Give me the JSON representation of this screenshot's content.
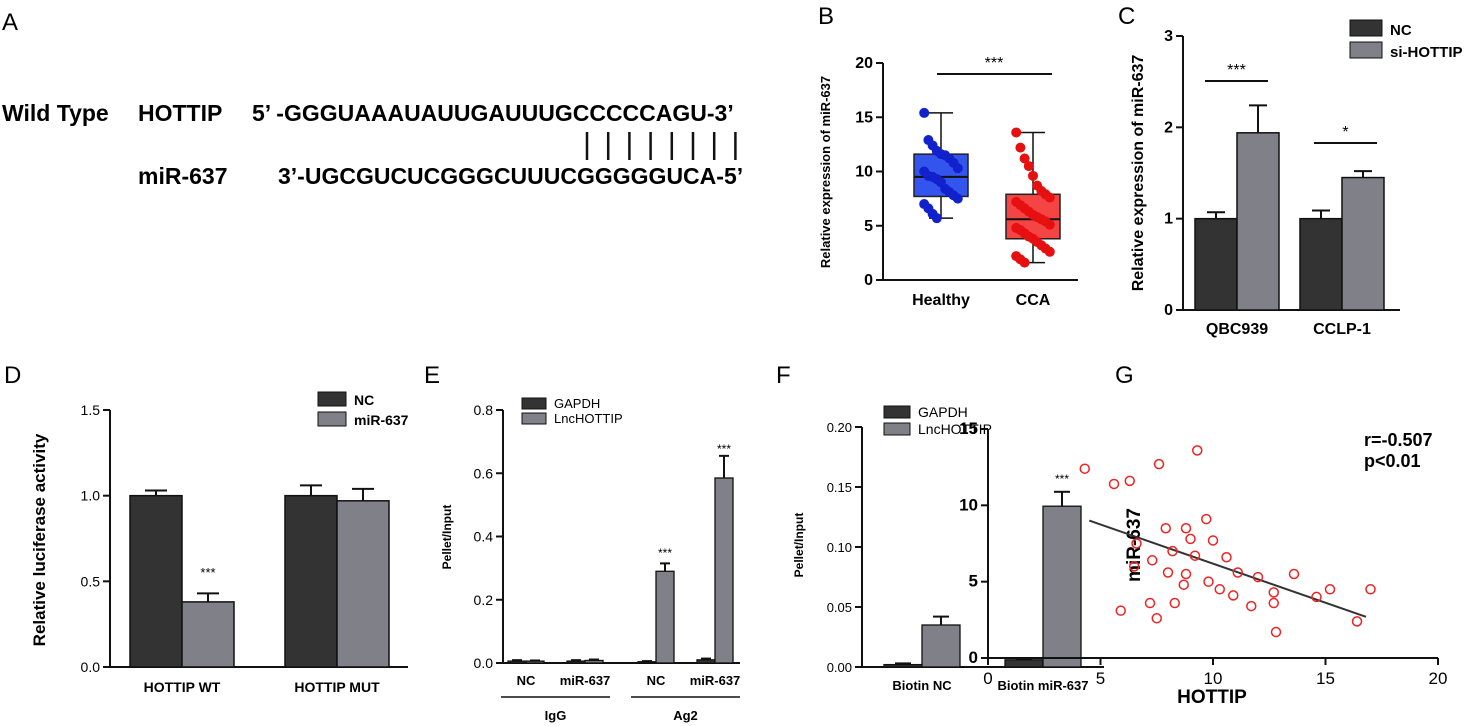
{
  "panels": {
    "A": {
      "letter": "A",
      "wild_type_label": "Wild Type",
      "gene1_label": "HOTTIP",
      "seq1": "5’ -GGGUAAAUAUUGAUUUGCCCCCAGU-3’",
      "gene2_label": "miR-637",
      "seq2": "3’-UGCGUCUCGGGCUUUCGGGGGUCA-5’",
      "pairing_count": 8
    },
    "B": {
      "letter": "B"
    },
    "C": {
      "letter": "C"
    },
    "D": {
      "letter": "D"
    },
    "E": {
      "letter": "E"
    },
    "F": {
      "letter": "F"
    },
    "G": {
      "letter": "G"
    }
  },
  "colors": {
    "dark_bar": "#333333",
    "grey_bar": "#808088",
    "healthy_box": "#3355ee",
    "healthy_point": "#1122cc",
    "cca_box": "#f44444",
    "cca_point": "#e61010",
    "scatter_point": "#ee2222",
    "fit_line": "#333333"
  },
  "chart_data": [
    {
      "panel": "B",
      "type": "box",
      "ylabel": "Relative expression of miR-637",
      "ylim": [
        0,
        20
      ],
      "yticks": [
        0,
        5,
        10,
        15,
        20
      ],
      "categories": [
        "Healthy",
        "CCA"
      ],
      "boxes": [
        {
          "category": "Healthy",
          "min": 5.7,
          "q1": 7.7,
          "median": 9.5,
          "q3": 11.6,
          "max": 15.4,
          "points": [
            15.4,
            12.9,
            12.4,
            11.9,
            11.6,
            11.5,
            11.2,
            10.8,
            10.3,
            10.0,
            9.6,
            9.5,
            9.3,
            9.0,
            8.4,
            8.1,
            7.8,
            7.5,
            7.0,
            6.6,
            6.1,
            5.7
          ]
        },
        {
          "category": "CCA",
          "min": 1.6,
          "q1": 3.8,
          "median": 5.6,
          "q3": 7.9,
          "max": 13.6,
          "points": [
            13.6,
            12.2,
            11.2,
            10.5,
            9.6,
            8.7,
            8.2,
            7.9,
            7.6,
            7.2,
            6.9,
            6.6,
            6.3,
            6.0,
            5.8,
            5.6,
            5.4,
            5.1,
            4.8,
            4.6,
            4.3,
            4.0,
            3.8,
            3.5,
            3.2,
            2.9,
            2.6,
            2.2,
            1.9,
            1.6
          ]
        }
      ],
      "significance": "***"
    },
    {
      "panel": "C",
      "type": "bar",
      "ylabel": "Relative expression of miR-637",
      "ylim": [
        0,
        3
      ],
      "yticks": [
        0,
        1,
        2,
        3
      ],
      "categories": [
        "QBC939",
        "CCLP-1"
      ],
      "series": [
        {
          "name": "NC",
          "values": [
            1.0,
            1.0
          ],
          "errors": [
            0.07,
            0.09
          ]
        },
        {
          "name": "si-HOTTIP",
          "values": [
            1.94,
            1.45
          ],
          "errors": [
            0.3,
            0.07
          ]
        }
      ],
      "significance": [
        "***",
        "*"
      ],
      "legend": "top-right"
    },
    {
      "panel": "D",
      "type": "bar",
      "ylabel": "Relative luciferase activity",
      "ylim": [
        0,
        1.5
      ],
      "yticks": [
        "0.0",
        "0.5",
        "1.0",
        "1.5"
      ],
      "categories": [
        "HOTTIP WT",
        "HOTTIP MUT"
      ],
      "series": [
        {
          "name": "NC",
          "values": [
            1.0,
            1.0
          ],
          "errors": [
            0.03,
            0.06
          ]
        },
        {
          "name": "miR-637",
          "values": [
            0.38,
            0.97
          ],
          "errors": [
            0.05,
            0.07
          ]
        }
      ],
      "significance": [
        "***",
        ""
      ],
      "legend": "top-right"
    },
    {
      "panel": "E",
      "type": "bar",
      "ylabel": "Pellet/Input",
      "ylim": [
        0,
        0.8
      ],
      "yticks": [
        "0.0",
        "0.2",
        "0.4",
        "0.6",
        "0.8"
      ],
      "categories": [
        "NC",
        "miR-637",
        "NC",
        "miR-637"
      ],
      "groups": [
        {
          "label": "IgG",
          "span": [
            0,
            1
          ]
        },
        {
          "label": "Ag2",
          "span": [
            2,
            3
          ]
        }
      ],
      "series": [
        {
          "name": "GAPDH",
          "values": [
            0.006,
            0.006,
            0.004,
            0.01
          ],
          "errors": [
            0.003,
            0.003,
            0.002,
            0.004
          ]
        },
        {
          "name": "LncHOTTIP",
          "values": [
            0.006,
            0.008,
            0.29,
            0.585
          ],
          "errors": [
            0.002,
            0.003,
            0.025,
            0.07
          ]
        }
      ],
      "significance": [
        "",
        "",
        "***",
        "***"
      ],
      "legend": "top-left"
    },
    {
      "panel": "F",
      "type": "bar",
      "ylabel": "Pellet/Input",
      "ylim": [
        0,
        0.2
      ],
      "yticks": [
        "0.00",
        "0.05",
        "0.10",
        "0.15",
        "0.20"
      ],
      "categories": [
        "Biotin NC",
        "Biotin miR-637"
      ],
      "series": [
        {
          "name": "GAPDH",
          "values": [
            0.002,
            0.006
          ],
          "errors": [
            0.001,
            0.001
          ]
        },
        {
          "name": "LncHOTTIP",
          "values": [
            0.035,
            0.134
          ],
          "errors": [
            0.007,
            0.012
          ]
        }
      ],
      "significance": [
        "",
        "***"
      ],
      "legend": "top-left"
    },
    {
      "panel": "G",
      "type": "scatter",
      "xlabel": "HOTTIP",
      "ylabel": "miR-637",
      "xlim": [
        0,
        20
      ],
      "ylim": [
        0,
        15
      ],
      "xticks": [
        0,
        5,
        10,
        15,
        20
      ],
      "yticks": [
        0,
        5,
        10,
        15
      ],
      "annotation_r": "r=-0.507",
      "annotation_p": "p<0.01",
      "fit": {
        "x1": 4.5,
        "y1": 9.0,
        "x2": 16.8,
        "y2": 2.7
      },
      "points": [
        [
          4.3,
          12.4
        ],
        [
          5.6,
          11.4
        ],
        [
          6.3,
          11.6
        ],
        [
          7.6,
          12.7
        ],
        [
          9.3,
          13.6
        ],
        [
          7.9,
          8.5
        ],
        [
          8.8,
          8.5
        ],
        [
          9.7,
          9.1
        ],
        [
          9.0,
          7.8
        ],
        [
          10.0,
          7.7
        ],
        [
          6.6,
          7.5
        ],
        [
          8.2,
          7.0
        ],
        [
          9.2,
          6.7
        ],
        [
          7.3,
          6.4
        ],
        [
          10.6,
          6.6
        ],
        [
          6.5,
          6.0
        ],
        [
          11.1,
          5.6
        ],
        [
          8.0,
          5.6
        ],
        [
          8.8,
          5.5
        ],
        [
          12.0,
          5.3
        ],
        [
          13.6,
          5.5
        ],
        [
          9.8,
          5.0
        ],
        [
          8.7,
          4.8
        ],
        [
          10.3,
          4.5
        ],
        [
          12.7,
          4.3
        ],
        [
          10.9,
          4.1
        ],
        [
          15.2,
          4.5
        ],
        [
          17.0,
          4.5
        ],
        [
          14.6,
          4.0
        ],
        [
          5.9,
          3.1
        ],
        [
          7.2,
          3.6
        ],
        [
          8.3,
          3.6
        ],
        [
          11.7,
          3.4
        ],
        [
          12.7,
          3.6
        ],
        [
          7.5,
          2.6
        ],
        [
          16.4,
          2.4
        ],
        [
          12.8,
          1.7
        ]
      ]
    }
  ]
}
